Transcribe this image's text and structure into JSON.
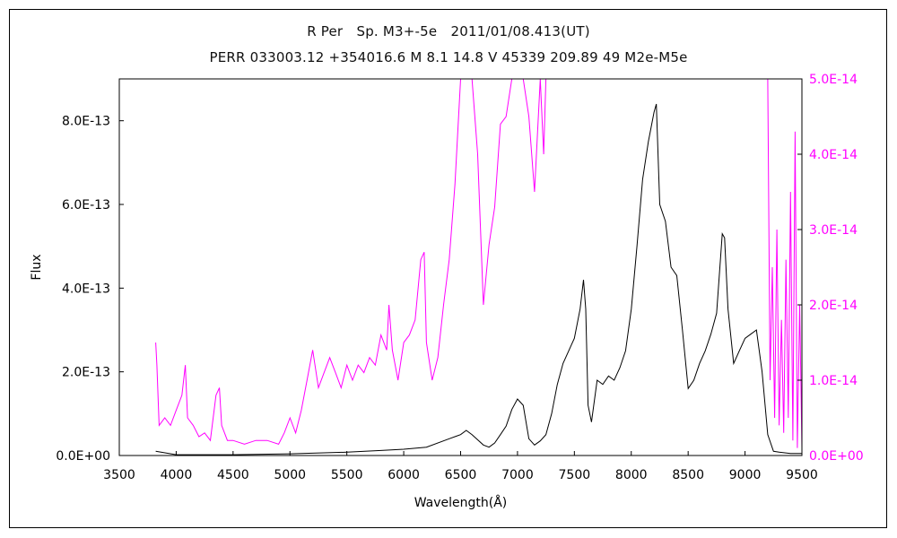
{
  "chart_data": {
    "type": "line",
    "title_line1": "R Per　Sp. M3+-5e　2011/01/08.413(UT)",
    "title_line2": "PERR 033003.12 +354016.6 M 8.1 14.8 V 45339 209.89 49 M2e-M5e",
    "xlabel": "Wavelength(Å)",
    "ylabel": "Flux",
    "xlim": [
      3500,
      9500
    ],
    "ylim_left": [
      0,
      9e-13
    ],
    "ylim_right": [
      0,
      5e-14
    ],
    "x_ticks": [
      "3500",
      "4000",
      "4500",
      "5000",
      "5500",
      "6000",
      "6500",
      "7000",
      "7500",
      "8000",
      "8500",
      "9000",
      "9500"
    ],
    "y_left_ticks": [
      "0.0E+00",
      "2.0E-13",
      "4.0E-13",
      "6.0E-13",
      "8.0E-13"
    ],
    "y_right_ticks": [
      "0.0E+00",
      "1.0E-14",
      "2.0E-14",
      "3.0E-14",
      "4.0E-14",
      "5.0E-14"
    ],
    "colors": {
      "left_series": "#000000",
      "right_series": "#ff00ff",
      "frame": "#000000"
    },
    "series": [
      {
        "axis": "left",
        "color": "#000000",
        "x": [
          3820,
          4000,
          4500,
          5000,
          5500,
          5800,
          6000,
          6200,
          6400,
          6500,
          6550,
          6600,
          6700,
          6750,
          6800,
          6850,
          6900,
          6950,
          7000,
          7050,
          7100,
          7150,
          7200,
          7250,
          7300,
          7350,
          7400,
          7450,
          7500,
          7550,
          7580,
          7600,
          7620,
          7650,
          7700,
          7750,
          7800,
          7850,
          7900,
          7950,
          8000,
          8050,
          8100,
          8150,
          8200,
          8220,
          8250,
          8300,
          8350,
          8400,
          8450,
          8500,
          8550,
          8600,
          8650,
          8700,
          8750,
          8800,
          8820,
          8850,
          8900,
          8950,
          9000,
          9050,
          9100,
          9150,
          9200,
          9250,
          9300,
          9400,
          9500
        ],
        "y": [
          1e-14,
          2e-15,
          2e-15,
          4e-15,
          8e-15,
          1.2e-14,
          1.5e-14,
          2e-14,
          4e-14,
          5e-14,
          6e-14,
          5e-14,
          2.5e-14,
          2e-14,
          3e-14,
          5e-14,
          7e-14,
          1.1e-13,
          1.35e-13,
          1.2e-13,
          4e-14,
          2.5e-14,
          3.5e-14,
          5e-14,
          1e-13,
          1.7e-13,
          2.2e-13,
          2.5e-13,
          2.8e-13,
          3.5e-13,
          4.2e-13,
          3.5e-13,
          1.2e-13,
          8e-14,
          1.8e-13,
          1.7e-13,
          1.9e-13,
          1.8e-13,
          2.1e-13,
          2.5e-13,
          3.5e-13,
          5e-13,
          6.6e-13,
          7.5e-13,
          8.2e-13,
          8.4e-13,
          6e-13,
          5.6e-13,
          4.5e-13,
          4.3e-13,
          3e-13,
          1.6e-13,
          1.8e-13,
          2.2e-13,
          2.5e-13,
          2.9e-13,
          3.4e-13,
          5.3e-13,
          5.2e-13,
          3.5e-13,
          2.2e-13,
          2.5e-13,
          2.8e-13,
          2.9e-13,
          3e-13,
          2e-13,
          5e-14,
          1e-14,
          8e-15,
          5e-15,
          5e-15
        ]
      },
      {
        "axis": "right",
        "color": "#ff00ff",
        "x": [
          3820,
          3830,
          3850,
          3900,
          3950,
          4000,
          4050,
          4080,
          4100,
          4150,
          4200,
          4250,
          4300,
          4350,
          4380,
          4400,
          4450,
          4500,
          4600,
          4700,
          4800,
          4900,
          4950,
          5000,
          5050,
          5100,
          5150,
          5200,
          5250,
          5300,
          5350,
          5400,
          5450,
          5500,
          5550,
          5600,
          5650,
          5700,
          5750,
          5800,
          5850,
          5870,
          5900,
          5950,
          6000,
          6050,
          6100,
          6150,
          6180,
          6200,
          6250,
          6300,
          6350,
          6400,
          6450,
          6500,
          6550,
          6600,
          6650,
          6700,
          6750,
          6800,
          6850,
          6900,
          6950,
          7000,
          7050,
          7100,
          7150,
          7200,
          7230,
          7250
        ],
        "y": [
          1.5e-14,
          1.2e-14,
          4e-15,
          5e-15,
          4e-15,
          6e-15,
          8e-15,
          1.2e-14,
          5e-15,
          4e-15,
          2.5e-15,
          3e-15,
          2e-15,
          8e-15,
          9e-15,
          4e-15,
          2e-15,
          2e-15,
          1.5e-15,
          2e-15,
          2e-15,
          1.5e-15,
          3e-15,
          5e-15,
          3e-15,
          6e-15,
          1e-14,
          1.4e-14,
          9e-15,
          1.1e-14,
          1.3e-14,
          1.1e-14,
          9e-15,
          1.2e-14,
          1e-14,
          1.2e-14,
          1.1e-14,
          1.3e-14,
          1.2e-14,
          1.6e-14,
          1.4e-14,
          2e-14,
          1.4e-14,
          1e-14,
          1.5e-14,
          1.6e-14,
          1.8e-14,
          2.6e-14,
          2.7e-14,
          1.5e-14,
          1e-14,
          1.3e-14,
          2e-14,
          2.6e-14,
          3.6e-14,
          5e-14,
          5e-14,
          5e-14,
          4e-14,
          2e-14,
          2.8e-14,
          3.3e-14,
          4.4e-14,
          4.5e-14,
          5e-14,
          5e-14,
          5e-14,
          4.5e-14,
          3.5e-14,
          5e-14,
          4e-14,
          5e-14
        ]
      },
      {
        "axis": "right",
        "color": "#ff00ff",
        "x": [
          9200,
          9220,
          9240,
          9260,
          9280,
          9300,
          9320,
          9340,
          9360,
          9380,
          9400,
          9420,
          9440,
          9460,
          9480,
          9500
        ],
        "y": [
          5e-14,
          1e-14,
          2.5e-14,
          5e-15,
          3e-14,
          4e-15,
          1.8e-14,
          3e-15,
          2.6e-14,
          5e-15,
          3.5e-14,
          2e-15,
          4.3e-14,
          1e-15,
          2e-14,
          1e-15
        ]
      }
    ]
  }
}
